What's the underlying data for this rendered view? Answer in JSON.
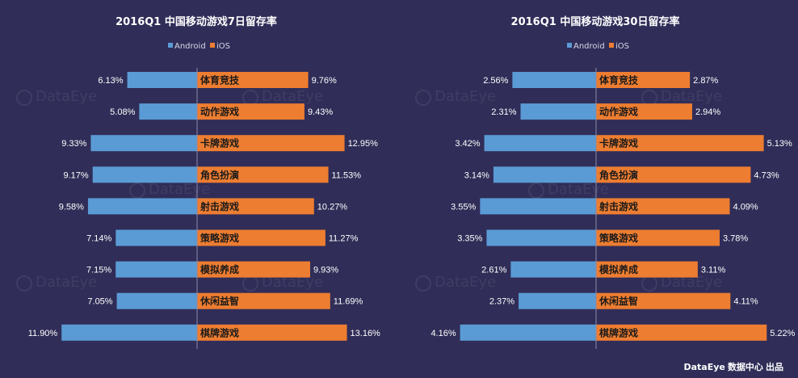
{
  "colors": {
    "background": "#302d58",
    "android": "#5b9bd5",
    "ios": "#ed7d31",
    "text": "#ffffff",
    "axis": "#8a8aa8"
  },
  "footer": {
    "brand": "DataEye",
    "text": "数据中心 出品"
  },
  "watermark": "DataEye",
  "chart_data": [
    {
      "type": "bar",
      "title": "2016Q1 中国移动游戏7日留存率",
      "legend_position": "top",
      "categories": [
        "体育竞技",
        "动作游戏",
        "卡牌游戏",
        "角色扮演",
        "射击游戏",
        "策略游戏",
        "模拟养成",
        "休闲益智",
        "棋牌游戏"
      ],
      "series": [
        {
          "name": "Android",
          "values": [
            6.13,
            5.08,
            9.33,
            9.17,
            9.58,
            7.14,
            7.15,
            7.05,
            11.9
          ],
          "labels": [
            "6.13%",
            "5.08%",
            "9.33%",
            "9.17%",
            "9.58%",
            "7.14%",
            "7.15%",
            "7.05%",
            "11.90%"
          ]
        },
        {
          "name": "iOS",
          "values": [
            9.76,
            9.43,
            12.95,
            11.53,
            10.27,
            11.27,
            9.93,
            11.69,
            13.16
          ],
          "labels": [
            "9.76%",
            "9.43%",
            "12.95%",
            "11.53%",
            "10.27%",
            "11.27%",
            "9.93%",
            "11.69%",
            "13.16%"
          ]
        }
      ],
      "scale_max": 12.2
    },
    {
      "type": "bar",
      "title": "2016Q1 中国移动游戏30日留存率",
      "legend_position": "top",
      "categories": [
        "体育竞技",
        "动作游戏",
        "卡牌游戏",
        "角色扮演",
        "射击游戏",
        "策略游戏",
        "模拟养成",
        "休闲益智",
        "棋牌游戏"
      ],
      "series": [
        {
          "name": "Android",
          "values": [
            2.56,
            2.31,
            3.42,
            3.14,
            3.55,
            3.35,
            2.61,
            2.37,
            4.16
          ],
          "labels": [
            "2.56%",
            "2.31%",
            "3.42%",
            "3.14%",
            "3.55%",
            "3.35%",
            "2.61%",
            "2.37%",
            "4.16%"
          ]
        },
        {
          "name": "iOS",
          "values": [
            2.87,
            2.94,
            5.13,
            4.73,
            4.09,
            3.78,
            3.11,
            4.11,
            5.22
          ],
          "labels": [
            "2.87%",
            "2.94%",
            "5.13%",
            "4.73%",
            "4.09%",
            "3.78%",
            "3.11%",
            "4.11%",
            "5.22%"
          ]
        }
      ],
      "scale_max": 4.25
    }
  ]
}
